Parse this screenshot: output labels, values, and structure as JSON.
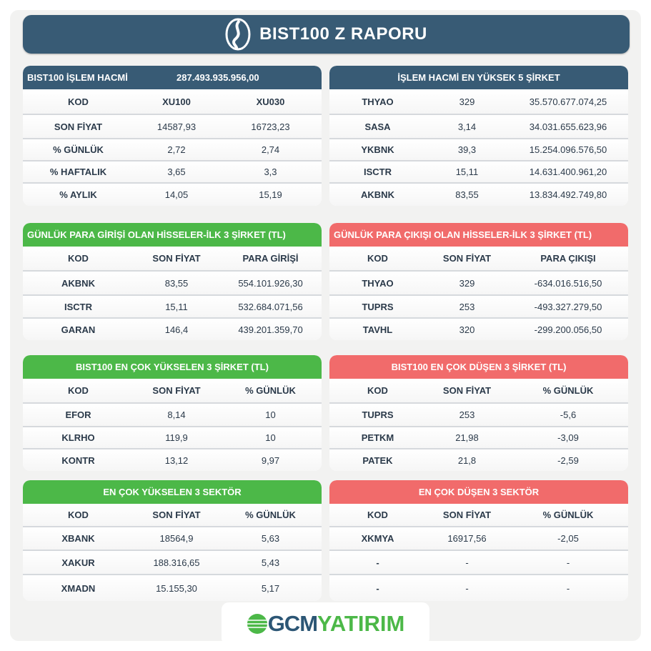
{
  "title": "BIST100 Z RAPORU",
  "colors": {
    "header": "#385b75",
    "green": "#4cb848",
    "red": "#f16b6b"
  },
  "brand": {
    "part1": "GCM",
    "part2": "YATIRIM"
  },
  "panels": [
    {
      "id": "bist100-overview",
      "color": "blue",
      "header_label": "BIST100 İŞLEM HACMİ",
      "header_value": "287.493.935.956,00",
      "rows": [
        [
          "KOD",
          "XU100",
          "XU030"
        ],
        [
          "SON FİYAT",
          "14587,93",
          "16723,23"
        ],
        [
          "% GÜNLÜK",
          "2,72",
          "2,74"
        ],
        [
          "% HAFTALIK",
          "3,65",
          "3,3"
        ],
        [
          "% AYLIK",
          "14,05",
          "15,19"
        ]
      ],
      "bold_first_row": true
    },
    {
      "id": "top-volume",
      "color": "blue",
      "title": "İŞLEM HACMİ EN YÜKSEK 5 ŞİRKET",
      "rows": [
        [
          "THYAO",
          "329",
          "35.570.677.074,25"
        ],
        [
          "SASA",
          "3,14",
          "34.031.655.623,96"
        ],
        [
          "YKBNK",
          "39,3",
          "15.254.096.576,50"
        ],
        [
          "ISCTR",
          "15,11",
          "14.631.400.961,20"
        ],
        [
          "AKBNK",
          "83,55",
          "13.834.492.749,80"
        ]
      ]
    },
    {
      "id": "money-inflow",
      "color": "green",
      "title": "GÜNLÜK PARA GİRİŞİ OLAN HİSSELER-İLK 3 ŞİRKET (TL)",
      "left": true,
      "rows": [
        [
          "KOD",
          "SON FİYAT",
          "PARA GİRİŞİ"
        ],
        [
          "AKBNK",
          "83,55",
          "554.101.926,30"
        ],
        [
          "ISCTR",
          "15,11",
          "532.684.071,56"
        ],
        [
          "GARAN",
          "146,4",
          "439.201.359,70"
        ]
      ],
      "bold_first_row": true
    },
    {
      "id": "money-outflow",
      "color": "red",
      "title": "GÜNLÜK PARA ÇIKIŞI OLAN HİSSELER-İLK 3 ŞİRKET (TL)",
      "left": true,
      "rows": [
        [
          "KOD",
          "SON FİYAT",
          "PARA ÇIKIŞI"
        ],
        [
          "THYAO",
          "329",
          "-634.016.516,50"
        ],
        [
          "TUPRS",
          "253",
          "-493.327.279,50"
        ],
        [
          "TAVHL",
          "320",
          "-299.200.056,50"
        ]
      ],
      "bold_first_row": true
    },
    {
      "id": "top-gainers",
      "color": "green",
      "title": "BIST100 EN ÇOK YÜKSELEN 3 ŞİRKET (TL)",
      "rows": [
        [
          "KOD",
          "SON FİYAT",
          "% GÜNLÜK"
        ],
        [
          "EFOR",
          "8,14",
          "10"
        ],
        [
          "KLRHO",
          "119,9",
          "10"
        ],
        [
          "KONTR",
          "13,12",
          "9,97"
        ]
      ],
      "bold_first_row": true
    },
    {
      "id": "top-losers",
      "color": "red",
      "title": "BIST100 EN ÇOK DÜŞEN 3 ŞİRKET (TL)",
      "rows": [
        [
          "KOD",
          "SON FİYAT",
          "% GÜNLÜK"
        ],
        [
          "TUPRS",
          "253",
          "-5,6"
        ],
        [
          "PETKM",
          "21,98",
          "-3,09"
        ],
        [
          "PATEK",
          "21,8",
          "-2,59"
        ]
      ],
      "bold_first_row": true
    },
    {
      "id": "top-sectors",
      "color": "green",
      "title": "EN ÇOK YÜKSELEN 3 SEKTÖR",
      "rows": [
        [
          "KOD",
          "SON FİYAT",
          "% GÜNLÜK"
        ],
        [
          "XBANK",
          "18564,9",
          "5,63"
        ],
        [
          "XAKUR",
          "188.316,65",
          "5,43"
        ],
        [
          "XMADN",
          "15.155,30",
          "5,17"
        ]
      ],
      "bold_first_row": true
    },
    {
      "id": "bottom-sectors",
      "color": "red",
      "title": "EN ÇOK DÜŞEN 3 SEKTÖR",
      "rows": [
        [
          "KOD",
          "SON FİYAT",
          "% GÜNLÜK"
        ],
        [
          "XKMYA",
          "16917,56",
          "-2,05"
        ],
        [
          "-",
          "-",
          "-"
        ],
        [
          "-",
          "-",
          "-"
        ]
      ],
      "bold_first_row": true
    }
  ]
}
